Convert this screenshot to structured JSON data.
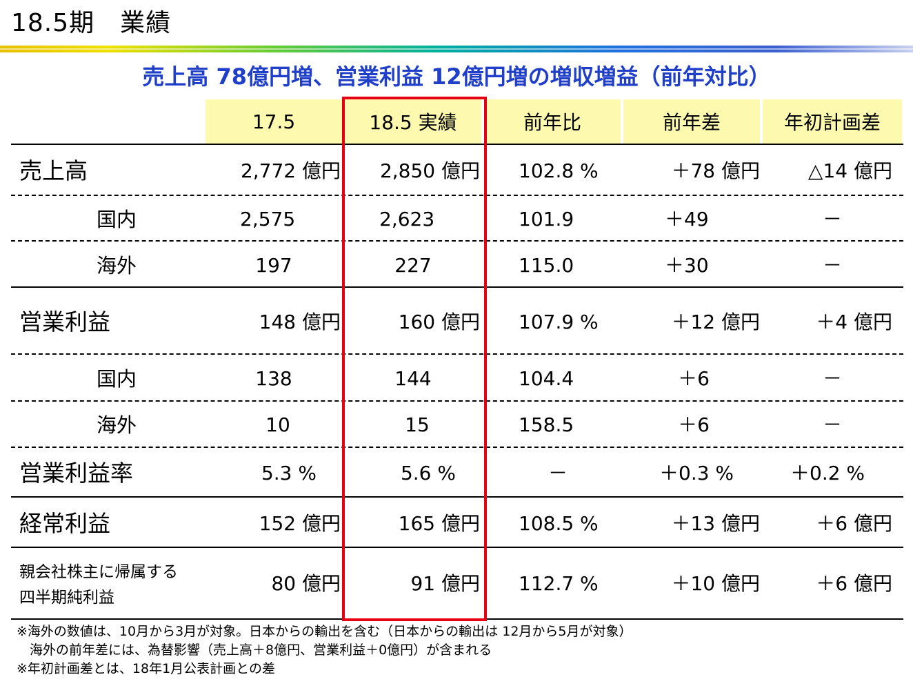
{
  "page_title": "18.5期　業績",
  "headline": "売上高 78億円増、営業利益 12億円増の増収増益（前年対比）",
  "columns": [
    "17.5",
    "18.5 実績",
    "前年比",
    "前年差",
    "年初計画差"
  ],
  "rows": [
    {
      "label": "売上高",
      "c1": "2,772 億円",
      "c2": "2,850 億円",
      "c3": "102.8 %",
      "c4": "＋78 億円",
      "c5": "△14 億円"
    },
    {
      "label": "国内",
      "c1": "2,575",
      "c2": "2,623",
      "c3": "101.9",
      "c4": "＋49",
      "c5": "－"
    },
    {
      "label": "海外",
      "c1": "197",
      "c2": "227",
      "c3": "115.0",
      "c4": "＋30",
      "c5": "－"
    },
    {
      "label": "営業利益",
      "c1": "148 億円",
      "c2": "160 億円",
      "c3": "107.9 %",
      "c4": "＋12 億円",
      "c5": "＋4 億円"
    },
    {
      "label": "国内",
      "c1": "138",
      "c2": "144",
      "c3": "104.4",
      "c4": "＋6",
      "c5": "－"
    },
    {
      "label": "海外",
      "c1": "10",
      "c2": "15",
      "c3": "158.5",
      "c4": "＋6",
      "c5": "－"
    },
    {
      "label": "営業利益率",
      "c1": "5.3 %",
      "c2": "5.6 %",
      "c3": "－",
      "c4": "＋0.3 %",
      "c5": "＋0.2 %"
    },
    {
      "label": "経常利益",
      "c1": "152 億円",
      "c2": "165 億円",
      "c3": "108.5 %",
      "c4": "＋13 億円",
      "c5": "＋6 億円"
    },
    {
      "label_line1": "親会社株主に帰属する",
      "label_line2": "四半期純利益",
      "c1": "80 億円",
      "c2": "91 億円",
      "c3": "112.7 %",
      "c4": "＋10 億円",
      "c5": "＋6 億円"
    }
  ],
  "notes": [
    "※海外の数値は、10月から3月が対象。日本からの輸出を含む（日本からの輸出は 12月から5月が対象）",
    "　海外の前年差には、為替影響（売上高＋8億円、営業利益＋0億円）が含まれる",
    "※年初計画差とは、18年1月公表計画との差"
  ],
  "colors": {
    "headline": "#1f3fc8",
    "header_bg": "#fdfab0",
    "highlight_border": "#e60012"
  }
}
